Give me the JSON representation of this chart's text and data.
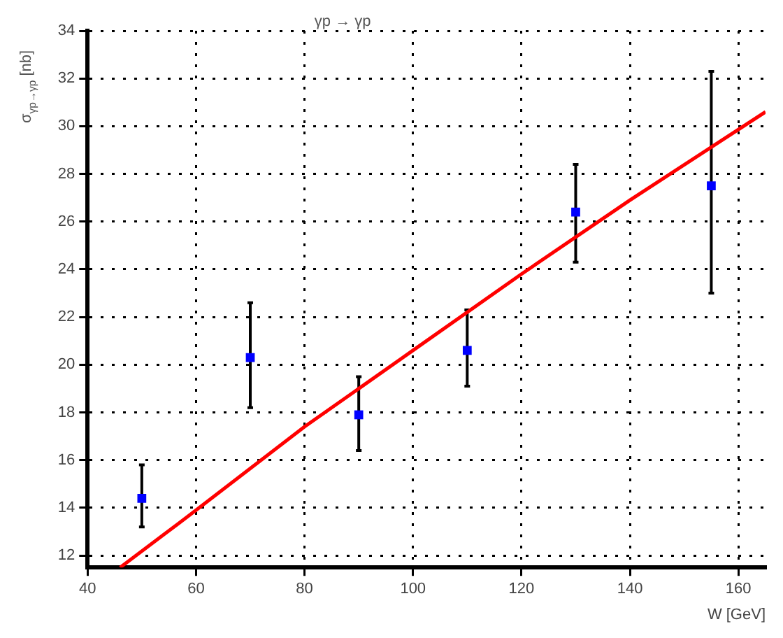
{
  "chart_data": {
    "type": "scatter",
    "title": "γp → γp",
    "xlabel": "W [GeV]",
    "ylabel": "σ$_{γp→γp}$ [nb]",
    "xlim": [
      40,
      165
    ],
    "ylim": [
      11.5,
      34
    ],
    "xticks": [
      40,
      60,
      80,
      100,
      120,
      140,
      160
    ],
    "yticks": [
      12,
      14,
      16,
      18,
      20,
      22,
      24,
      26,
      28,
      30,
      32,
      34
    ],
    "grid": true,
    "marker": "square",
    "legend": false,
    "series": [
      {
        "color": "#0000ff",
        "x": [
          50,
          70,
          90,
          110,
          130,
          155
        ],
        "values": [
          14.4,
          20.3,
          17.9,
          20.6,
          26.4,
          27.5
        ],
        "errors": [
          [
            13.2,
            15.8
          ],
          [
            18.2,
            22.6
          ],
          [
            16.4,
            19.5
          ],
          [
            19.1,
            22.3
          ],
          [
            24.3,
            28.4
          ],
          [
            23,
            32.3
          ]
        ]
      },
      {
        "type": "line",
        "color": "#ff0000",
        "marker": "none",
        "x": [
          46,
          60,
          80,
          100,
          120,
          140,
          165
        ],
        "values": [
          11.5,
          13.9,
          17.4,
          20.6,
          23.8,
          26.9,
          30.6
        ]
      }
    ]
  }
}
